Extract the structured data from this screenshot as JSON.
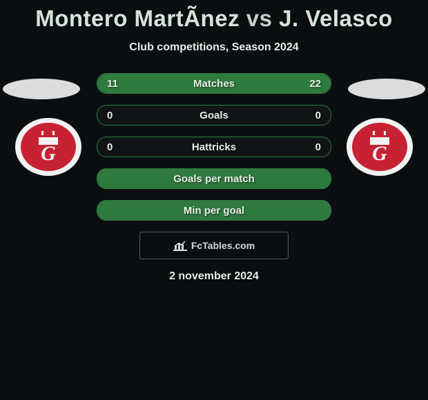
{
  "header": {
    "player1": "Montero MartÃ­nez",
    "vs": "vs",
    "player2": "J. Velasco",
    "subtitle": "Club competitions, Season 2024"
  },
  "stats": {
    "rows": [
      {
        "left": "11",
        "label": "Matches",
        "right": "22",
        "fill_left_pct": 33,
        "fill_right_pct": 67
      },
      {
        "left": "0",
        "label": "Goals",
        "right": "0",
        "fill_left_pct": 0,
        "fill_right_pct": 0
      },
      {
        "left": "0",
        "label": "Hattricks",
        "right": "0",
        "fill_left_pct": 0,
        "fill_right_pct": 0
      },
      {
        "left": "",
        "label": "Goals per match",
        "right": "",
        "full": true
      },
      {
        "left": "",
        "label": "Min per goal",
        "right": "",
        "full": true
      }
    ]
  },
  "watermark": {
    "text": "FcTables.com"
  },
  "date": "2 november 2024",
  "colors": {
    "bg": "#0b0e11",
    "title": "#d6e3da",
    "accent": "#2f7a3f",
    "badge_red": "#c62233",
    "badge_white": "#f2f2f2"
  }
}
